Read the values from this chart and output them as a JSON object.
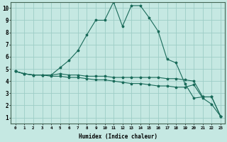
{
  "xlabel": "Humidex (Indice chaleur)",
  "bg_color": "#c5e8e2",
  "grid_color": "#9dcdc6",
  "line_color": "#1a6b5a",
  "xlim": [
    -0.5,
    23.5
  ],
  "ylim": [
    0.5,
    10.5
  ],
  "xticks": [
    0,
    1,
    2,
    3,
    4,
    5,
    6,
    7,
    8,
    9,
    10,
    11,
    12,
    13,
    14,
    15,
    16,
    17,
    18,
    19,
    20,
    21,
    22,
    23
  ],
  "yticks": [
    1,
    2,
    3,
    4,
    5,
    6,
    7,
    8,
    9,
    10
  ],
  "series1": [
    4.8,
    4.6,
    4.5,
    4.5,
    4.4,
    4.4,
    4.3,
    4.3,
    4.2,
    4.1,
    4.1,
    4.0,
    3.9,
    3.8,
    3.8,
    3.7,
    3.6,
    3.6,
    3.5,
    3.5,
    3.7,
    2.6,
    2.1,
    1.1
  ],
  "series2": [
    4.8,
    4.6,
    4.5,
    4.5,
    4.5,
    4.6,
    4.5,
    4.5,
    4.4,
    4.4,
    4.4,
    4.3,
    4.3,
    4.3,
    4.3,
    4.3,
    4.3,
    4.2,
    4.2,
    4.1,
    4.0,
    2.7,
    2.7,
    1.1
  ],
  "series3": [
    4.8,
    4.6,
    4.5,
    4.5,
    4.5,
    5.1,
    5.7,
    6.5,
    7.8,
    9.0,
    9.0,
    10.5,
    8.5,
    10.2,
    10.2,
    9.2,
    8.1,
    5.8,
    5.5,
    3.8,
    2.6,
    2.7,
    2.7,
    1.1
  ]
}
